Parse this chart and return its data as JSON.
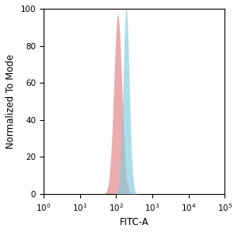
{
  "title": "",
  "xlabel": "FITC-A",
  "ylabel": "Normalized To Mode",
  "xlim_log": [
    0,
    5
  ],
  "ylim": [
    0,
    100
  ],
  "yticks": [
    0,
    20,
    40,
    60,
    80,
    100
  ],
  "red_peak_log": 2.05,
  "red_peak_height": 97,
  "red_sigma_log": 0.11,
  "blue_peak_log": 2.28,
  "blue_peak_height": 100,
  "blue_sigma_log": 0.085,
  "red_fill_color": "#e08080",
  "blue_fill_color": "#80ccdd",
  "fill_alpha": 0.65,
  "background_color": "#ffffff",
  "label_fontsize": 8.5,
  "tick_fontsize": 7.5
}
